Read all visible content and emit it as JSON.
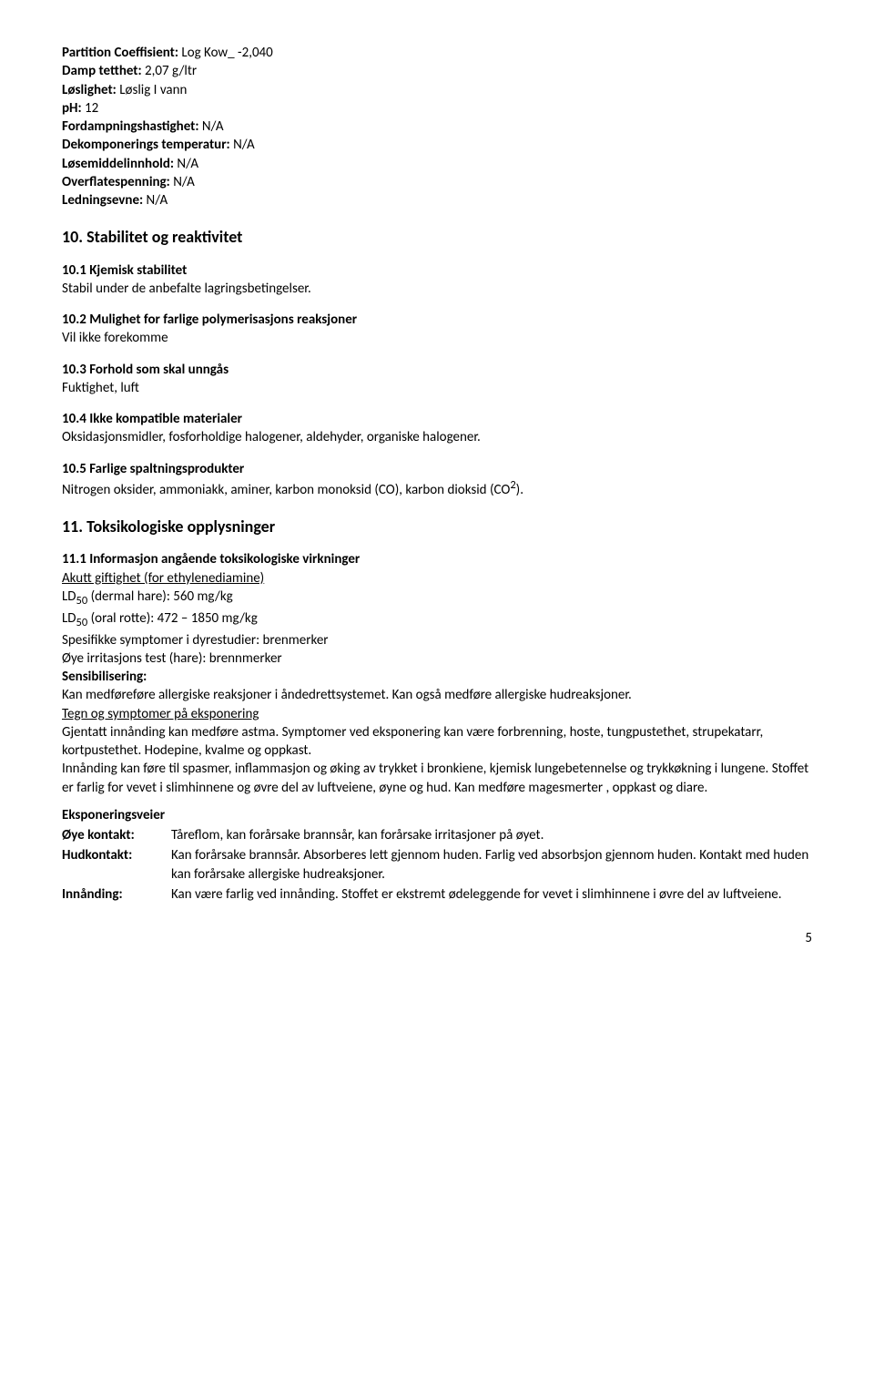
{
  "phys": {
    "partition_lbl": "Partition Coeffisient:",
    "partition_val": " Log Kow_ -2,040",
    "damp_lbl": "Damp tetthet:",
    "damp_val": " 2,07 g/ltr",
    "losl_lbl": "Løslighet:",
    "losl_val": " Løslig I vann",
    "ph_lbl": "pH:",
    "ph_val": " 12",
    "ford_lbl": "Fordampningshastighet:",
    "ford_val": " N/A",
    "dekomp_lbl": "Dekomponerings temperatur:",
    "dekomp_val": " N/A",
    "losem_lbl": "Løsemiddelinnhold:",
    "losem_val": " N/A",
    "overfl_lbl": "Overflatespenning:",
    "overfl_val": " N/A",
    "ledn_lbl": "Ledningsevne:",
    "ledn_val": " N/A"
  },
  "s10": {
    "title": "10. Stabilitet og reaktivitet",
    "s1_h": "10.1 Kjemisk stabilitet",
    "s1_t": "Stabil under de anbefalte lagringsbetingelser.",
    "s2_h": "10.2 Mulighet for farlige polymerisasjons reaksjoner",
    "s2_t": "Vil ikke forekomme",
    "s3_h": "10.3 Forhold som skal unngås",
    "s3_t": "Fuktighet, luft",
    "s4_h": "10.4 Ikke kompatible materialer",
    "s4_t": "Oksidasjonsmidler, fosforholdige halogener, aldehyder, organiske halogener.",
    "s5_h": "10.5 Farlige spaltningsprodukter",
    "s5_t1": "Nitrogen oksider, ammoniakk, aminer, karbon monoksid (CO), karbon dioksid (CO",
    "s5_sup": "2",
    "s5_t2": ")."
  },
  "s11": {
    "title": "11. Toksikologiske opplysninger",
    "s1_h": "11.1 Informasjon angående toksikologiske virkninger",
    "akutt_h": "Akutt giftighet (for ethylenediamine)",
    "ld_dermal_a": "LD",
    "ld_dermal_sub": "50",
    "ld_dermal_b": " (dermal hare): 560 mg/kg",
    "ld_oral_a": "LD",
    "ld_oral_sub": "50",
    "ld_oral_b": " (oral rotte): 472 – 1850 mg/kg",
    "spes": "Spesifikke symptomer i dyrestudier: brenmerker",
    "oye": "Øye irritasjons test (hare): brennmerker",
    "sens_h": "Sensibilisering:",
    "sens_t": "Kan medføreføre allergiske reaksjoner i åndedrettsystemet. Kan også medføre allergiske hudreaksjoner.",
    "tegn_h": "Tegn og symptomer på eksponering",
    "tegn_t": "Gjentatt innånding kan medføre astma. Symptomer ved eksponering kan være forbrenning,  hoste, tungpustethet, strupekatarr, kortpustethet. Hodepine, kvalme og oppkast.",
    "tegn_t2": "Innånding kan føre til spasmer, inflammasjon og øking av trykket i bronkiene, kjemisk lungebetennelse og trykkøkning i lungene.  Stoffet er farlig for vevet i slimhinnene og øvre del av luftveiene, øyne og hud. Kan medføre magesmerter , oppkast og diare.",
    "exp_h": "Eksponeringsveier",
    "eye_k": "Øye kontakt:",
    "eye_v": "Tåreflom, kan forårsake brannsår, kan forårsake irritasjoner på øyet.",
    "hud_k": "Hudkontakt:",
    "hud_v": "Kan forårsake brannsår. Absorberes lett gjennom huden. Farlig ved absorbsjon gjennom huden. Kontakt med huden kan forårsake allergiske hudreaksjoner.",
    "inn_k": "Innånding:",
    "inn_v": "Kan være farlig ved innånding. Stoffet er ekstremt ødeleggende for vevet i slimhinnene i øvre del av luftveiene."
  },
  "page": "5"
}
